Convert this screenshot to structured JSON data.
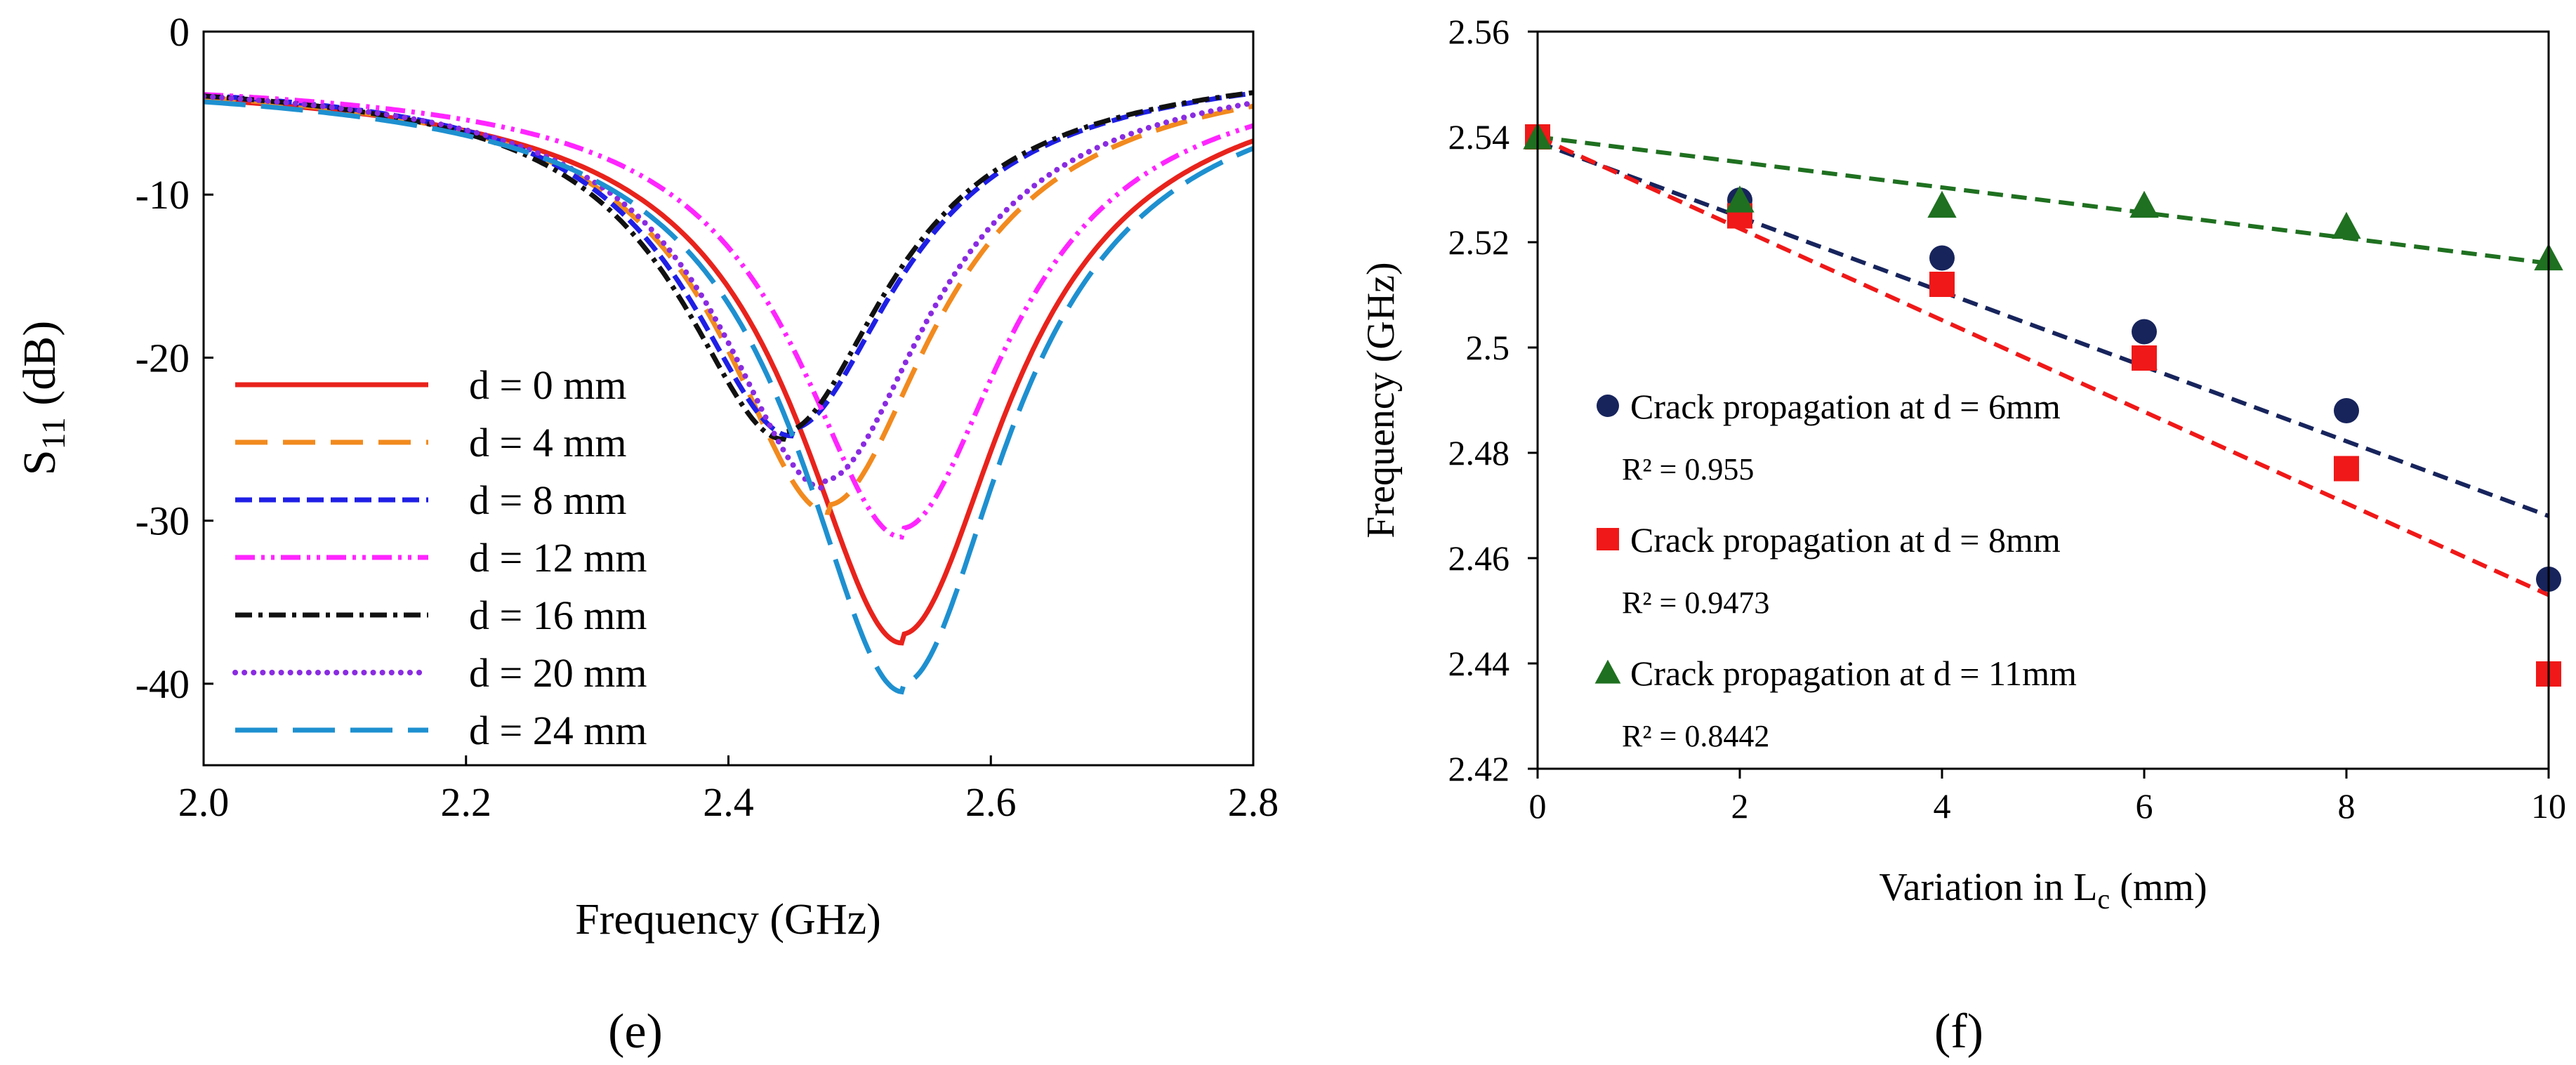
{
  "chart_data": [
    {
      "type": "line",
      "panel_label": "(e)",
      "xlabel": "Frequency (GHz)",
      "ylabel_main": "S",
      "ylabel_sub": "11",
      "ylabel_unit": " (dB)",
      "xlim": [
        2.0,
        2.8
      ],
      "ylim": [
        -45,
        0
      ],
      "xticks": [
        2.0,
        2.2,
        2.4,
        2.6,
        2.8
      ],
      "xtick_labels": [
        "2.0",
        "2.2",
        "2.4",
        "2.6",
        "2.8"
      ],
      "yticks": [
        0,
        -10,
        -20,
        -30,
        -40
      ],
      "ytick_labels": [
        "0",
        "-10",
        "-20",
        "-30",
        "-40"
      ],
      "legend_position": "left",
      "series": [
        {
          "name": "d = 0 mm",
          "color": "#e8231c",
          "dash": "solid",
          "f0": 2.532,
          "min_db": -37.5,
          "left": 2.45,
          "right": 2.57,
          "points": [
            [
              2.0,
              -2.5
            ],
            [
              2.1,
              -4.0
            ],
            [
              2.2,
              -6.0
            ],
            [
              2.3,
              -9.2
            ],
            [
              2.4,
              -14.2
            ],
            [
              2.45,
              -18.0
            ],
            [
              2.5,
              -25.0
            ],
            [
              2.532,
              -37.5
            ],
            [
              2.6,
              -18.0
            ],
            [
              2.7,
              -12.5
            ],
            [
              2.8,
              -9.5
            ]
          ]
        },
        {
          "name": "d = 4 mm",
          "color": "#f28a1e",
          "dash": "long",
          "f0": 2.476,
          "min_db": -29.5,
          "left": 2.21,
          "right": 2.0,
          "points": [
            [
              2.0,
              -2.6
            ],
            [
              2.1,
              -4.2
            ],
            [
              2.2,
              -6.5
            ],
            [
              2.3,
              -10.0
            ],
            [
              2.4,
              -16.2
            ],
            [
              2.476,
              -29.5
            ],
            [
              2.5,
              -24.0
            ],
            [
              2.6,
              -13.5
            ],
            [
              2.7,
              -9.8
            ],
            [
              2.8,
              -7.5
            ]
          ]
        },
        {
          "name": "d = 8 mm",
          "color": "#1f1fe6",
          "dash": "medium",
          "f0": 2.448,
          "min_db": -24.8,
          "left": 2.4,
          "right": 2.0,
          "points": [
            [
              2.0,
              -2.7
            ],
            [
              2.1,
              -4.5
            ],
            [
              2.2,
              -7.5
            ],
            [
              2.3,
              -12.5
            ],
            [
              2.4,
              -19.5
            ],
            [
              2.448,
              -24.8
            ],
            [
              2.5,
              -17.0
            ],
            [
              2.6,
              -11.0
            ],
            [
              2.7,
              -8.2
            ],
            [
              2.8,
              -6.4
            ]
          ]
        },
        {
          "name": "d = 12 mm",
          "color": "#ff25ff",
          "dash": "dashdotdot",
          "f0": 2.532,
          "min_db": -31.0,
          "left": 2.08,
          "right": 2.02,
          "points": [
            [
              2.0,
              -2.6
            ],
            [
              2.1,
              -4.3
            ],
            [
              2.2,
              -6.7
            ],
            [
              2.3,
              -10.5
            ],
            [
              2.4,
              -16.5
            ],
            [
              2.47,
              -23.0
            ],
            [
              2.532,
              -31.0
            ],
            [
              2.6,
              -15.5
            ],
            [
              2.7,
              -11.5
            ],
            [
              2.8,
              -9.5
            ]
          ]
        },
        {
          "name": "d = 16 mm",
          "color": "#111111",
          "dash": "dashdot",
          "f0": 2.442,
          "min_db": -25.0,
          "left": 2.4,
          "right": 2.0,
          "points": [
            [
              2.0,
              -2.6
            ],
            [
              2.1,
              -4.4
            ],
            [
              2.2,
              -7.2
            ],
            [
              2.3,
              -12.0
            ],
            [
              2.4,
              -19.0
            ],
            [
              2.442,
              -25.0
            ],
            [
              2.5,
              -18.0
            ],
            [
              2.6,
              -11.5
            ],
            [
              2.7,
              -8.5
            ],
            [
              2.8,
              -6.6
            ]
          ]
        },
        {
          "name": "d = 20 mm",
          "color": "#8a2be2",
          "dash": "dotted",
          "f0": 2.473,
          "min_db": -28.0,
          "left": 2.22,
          "right": 2.03,
          "points": [
            [
              2.0,
              -2.5
            ],
            [
              2.1,
              -4.1
            ],
            [
              2.2,
              -6.3
            ],
            [
              2.3,
              -9.9
            ],
            [
              2.4,
              -16.0
            ],
            [
              2.473,
              -28.0
            ],
            [
              2.5,
              -23.0
            ],
            [
              2.6,
              -13.4
            ],
            [
              2.7,
              -9.6
            ],
            [
              2.8,
              -7.5
            ]
          ]
        },
        {
          "name": "d = 24 mm",
          "color": "#1e90d0",
          "dash": "longlong",
          "f0": 2.533,
          "min_db": -40.5,
          "left": 2.45,
          "right": 2.57,
          "points": [
            [
              2.0,
              -2.4
            ],
            [
              2.1,
              -3.9
            ],
            [
              2.2,
              -5.9
            ],
            [
              2.3,
              -9.0
            ],
            [
              2.4,
              -14.0
            ],
            [
              2.45,
              -18.0
            ],
            [
              2.5,
              -25.5
            ],
            [
              2.533,
              -40.5
            ],
            [
              2.6,
              -17.8
            ],
            [
              2.7,
              -12.3
            ],
            [
              2.8,
              -9.3
            ]
          ]
        }
      ]
    },
    {
      "type": "scatter",
      "panel_label": "(f)",
      "xlabel_main": "Variation in L",
      "xlabel_sub": "c",
      "xlabel_unit": " (mm)",
      "ylabel": "Frequency (GHz)",
      "xlim": [
        0,
        10
      ],
      "ylim": [
        2.42,
        2.56
      ],
      "xticks": [
        0,
        2,
        4,
        6,
        8,
        10
      ],
      "xtick_labels": [
        "0",
        "2",
        "4",
        "6",
        "8",
        "10"
      ],
      "yticks": [
        2.42,
        2.44,
        2.46,
        2.48,
        2.5,
        2.52,
        2.54,
        2.56
      ],
      "ytick_labels": [
        "2.42",
        "2.44",
        "2.46",
        "2.48",
        "2.5",
        "2.52",
        "2.54",
        "2.56"
      ],
      "legend_position": "center-left",
      "series": [
        {
          "name": "Crack propagation at d = 6mm",
          "r2": "R² = 0.955",
          "marker": "circle",
          "color": "#17245c",
          "x": [
            0,
            2,
            4,
            6,
            8,
            10
          ],
          "y": [
            2.54,
            2.528,
            2.517,
            2.503,
            2.488,
            2.456
          ],
          "trend": {
            "x0": 0,
            "y0": 2.539,
            "x1": 10,
            "y1": 2.468
          }
        },
        {
          "name": "Crack propagation at d = 8mm",
          "r2": "R² = 0.9473",
          "marker": "square",
          "color": "#f01818",
          "x": [
            0,
            2,
            4,
            6,
            8,
            10
          ],
          "y": [
            2.54,
            2.525,
            2.512,
            2.498,
            2.477,
            2.438
          ],
          "trend": {
            "x0": 0,
            "y0": 2.54,
            "x1": 10,
            "y1": 2.453
          }
        },
        {
          "name": "Crack propagation at d = 11mm",
          "r2": "R² = 0.8442",
          "marker": "triangle",
          "color": "#1f7020",
          "x": [
            0,
            2,
            4,
            6,
            8,
            10
          ],
          "y": [
            2.54,
            2.528,
            2.527,
            2.527,
            2.523,
            2.517
          ],
          "trend": {
            "x0": 0,
            "y0": 2.54,
            "x1": 10,
            "y1": 2.516
          }
        }
      ]
    }
  ]
}
